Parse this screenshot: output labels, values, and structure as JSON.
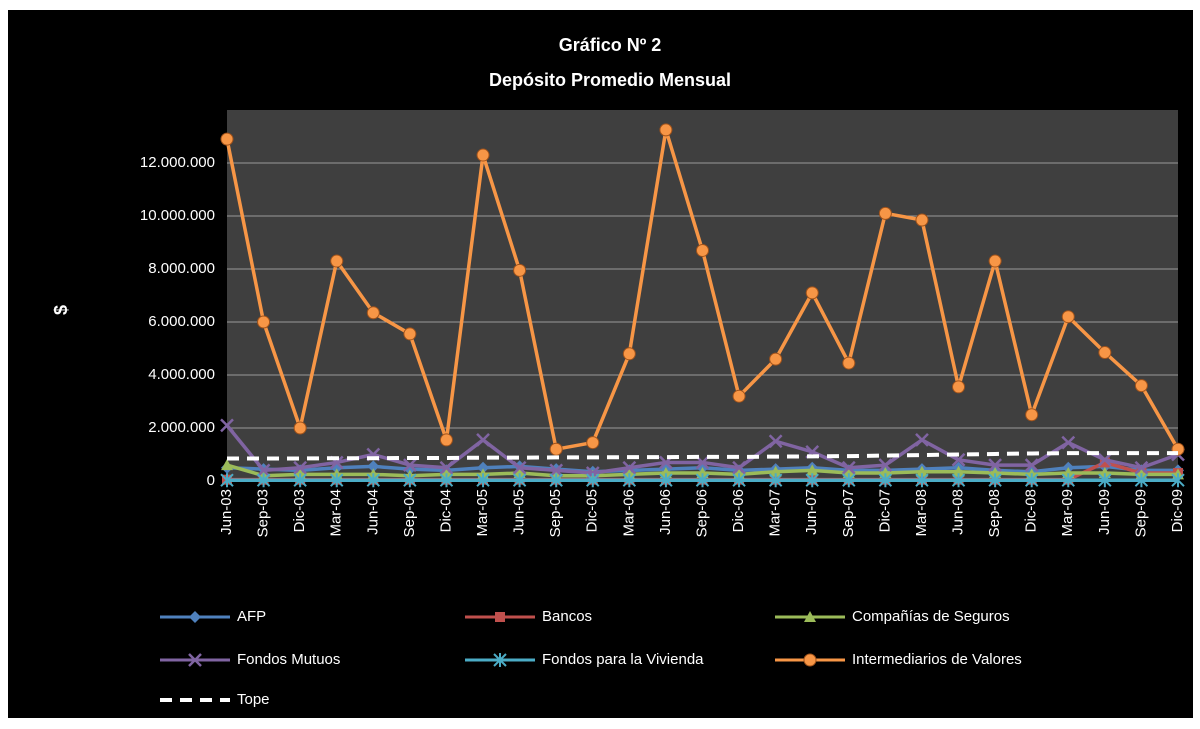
{
  "chart_data": {
    "type": "line",
    "title": "Gráfico Nº 2",
    "subtitle": "Depósito Promedio Mensual",
    "y_label": "$",
    "categories": [
      "Jun-03",
      "Sep-03",
      "Dic-03",
      "Mar-04",
      "Jun-04",
      "Sep-04",
      "Dic-04",
      "Mar-05",
      "Jun-05",
      "Sep-05",
      "Dic-05",
      "Mar-06",
      "Jun-06",
      "Sep-06",
      "Dic-06",
      "Mar-07",
      "Jun-07",
      "Sep-07",
      "Dic-07",
      "Mar-08",
      "Jun-08",
      "Sep-08",
      "Dic-08",
      "Mar-09",
      "Jun-09",
      "Sep-09",
      "Dic-09"
    ],
    "series": [
      {
        "name": "AFP",
        "color": "#4f81bd",
        "marker": "diamond",
        "values": [
          500000,
          450000,
          400000,
          500000,
          550000,
          450000,
          400000,
          500000,
          550000,
          450000,
          350000,
          400000,
          450000,
          500000,
          400000,
          450000,
          500000,
          400000,
          400000,
          450000,
          500000,
          400000,
          350000,
          500000,
          550000,
          400000,
          400000
        ]
      },
      {
        "name": "Bancos",
        "color": "#c0504d",
        "marker": "square",
        "values": [
          50000,
          50000,
          50000,
          50000,
          50000,
          50000,
          50000,
          50000,
          50000,
          50000,
          50000,
          50000,
          50000,
          50000,
          50000,
          50000,
          50000,
          50000,
          50000,
          50000,
          50000,
          50000,
          50000,
          50000,
          700000,
          300000,
          300000
        ]
      },
      {
        "name": "Compañías de Seguros",
        "color": "#9bbb59",
        "marker": "triangle",
        "values": [
          600000,
          200000,
          250000,
          250000,
          250000,
          200000,
          250000,
          250000,
          300000,
          200000,
          200000,
          250000,
          300000,
          300000,
          250000,
          350000,
          400000,
          300000,
          300000,
          350000,
          350000,
          300000,
          250000,
          300000,
          300000,
          250000,
          250000
        ]
      },
      {
        "name": "Fondos Mutuos",
        "color": "#8064a2",
        "marker": "x",
        "values": [
          2100000,
          400000,
          500000,
          700000,
          1000000,
          600000,
          500000,
          1550000,
          500000,
          400000,
          300000,
          500000,
          700000,
          700000,
          500000,
          1500000,
          1100000,
          500000,
          600000,
          1550000,
          800000,
          600000,
          600000,
          1450000,
          800000,
          500000,
          1000000
        ]
      },
      {
        "name": "Fondos para la Vivienda",
        "color": "#4bacc6",
        "marker": "star",
        "values": [
          30000,
          30000,
          30000,
          30000,
          30000,
          30000,
          30000,
          30000,
          30000,
          30000,
          30000,
          30000,
          30000,
          30000,
          30000,
          30000,
          30000,
          30000,
          30000,
          30000,
          30000,
          30000,
          30000,
          30000,
          30000,
          30000,
          30000
        ]
      },
      {
        "name": "Intermediarios de Valores",
        "color": "#f79646",
        "marker": "circle",
        "values": [
          12900000,
          6000000,
          2000000,
          8300000,
          6350000,
          5550000,
          1550000,
          12300000,
          7950000,
          1200000,
          1450000,
          4800000,
          13250000,
          8700000,
          3200000,
          4600000,
          7100000,
          4450000,
          10100000,
          9850000,
          3550000,
          8300000,
          2500000,
          6200000,
          4850000,
          3600000,
          1200000
        ]
      },
      {
        "name": "Tope",
        "color": "#ffffff",
        "dash": true,
        "values": [
          850000,
          850000,
          850000,
          860000,
          860000,
          870000,
          870000,
          880000,
          880000,
          890000,
          890000,
          900000,
          900000,
          910000,
          910000,
          920000,
          930000,
          940000,
          960000,
          980000,
          1000000,
          1020000,
          1040000,
          1050000,
          1050000,
          1050000,
          1050000
        ]
      }
    ],
    "ylim": [
      0,
      14000000
    ],
    "yticks": [
      0,
      {
        "value": 2000000,
        "label": "2.000.000"
      },
      {
        "value": 4000000,
        "label": "4.000.000"
      },
      {
        "value": 6000000,
        "label": "6.000.000"
      },
      {
        "value": 8000000,
        "label": "8.000.000"
      },
      {
        "value": 10000000,
        "label": "10.000.000"
      },
      {
        "value": 12000000,
        "label": "12.000.000"
      }
    ],
    "grid": true,
    "legend": "bottom"
  }
}
